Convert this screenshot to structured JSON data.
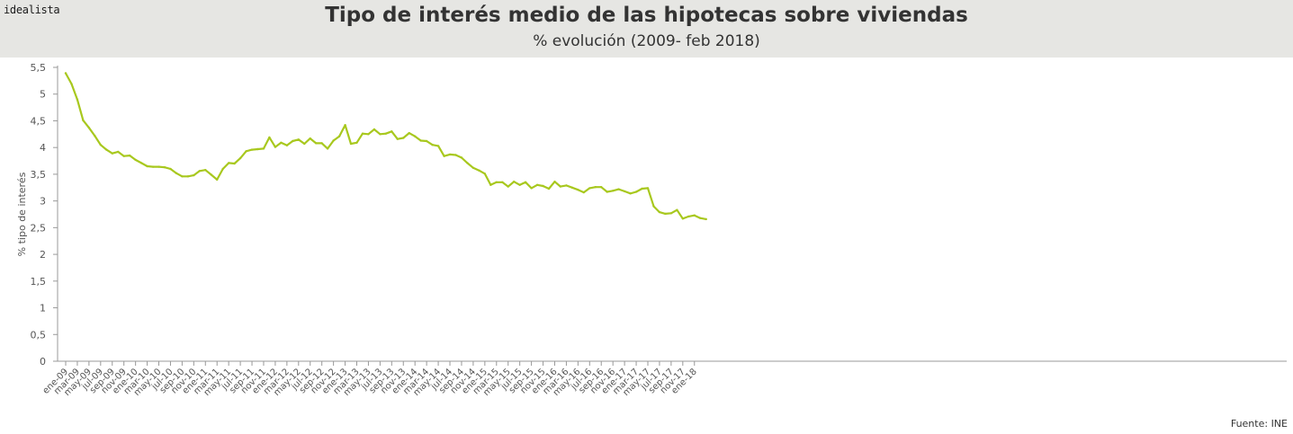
{
  "header": {
    "logo": "idealista",
    "title": "Tipo de interés medio de las hipotecas sobre viviendas",
    "subtitle": "% evolución (2009- feb 2018)"
  },
  "source": "Fuente: INE",
  "colors": {
    "line": "#a8c81e",
    "axis": "#999999",
    "text": "#555555",
    "header_bg": "#e6e6e3"
  },
  "chart_data": {
    "type": "line",
    "title": "Tipo de interés medio de las hipotecas sobre viviendas",
    "subtitle": "% evolución (2009- feb 2018)",
    "xlabel": "",
    "ylabel": "% tipo de interés",
    "ylim": [
      0,
      5.5
    ],
    "yticks": [
      "0",
      "0,5",
      "1",
      "1,5",
      "2",
      "2,5",
      "3",
      "3,5",
      "4",
      "4,5",
      "5",
      "5,5"
    ],
    "grid": false,
    "x_tick_labels": [
      "ene-09",
      "mar-09",
      "may-09",
      "jul-09",
      "sep-09",
      "nov-09",
      "ene-10",
      "mar-10",
      "may-10",
      "jul-10",
      "sep-10",
      "nov-10",
      "ene-11",
      "mar-11",
      "may-11",
      "jul-11",
      "sep-11",
      "nov-11",
      "ene-12",
      "mar-12",
      "may-12",
      "jul-12",
      "sep-12",
      "nov-12",
      "ene-13",
      "mar-13",
      "may-13",
      "jul-13",
      "sep-13",
      "nov-13",
      "ene-14",
      "mar-14",
      "may-14",
      "jul-14",
      "sep-14",
      "nov-14",
      "ene-15",
      "mar-15",
      "may-15",
      "jul-15",
      "sep-15",
      "nov-15",
      "ene-16",
      "mar-16",
      "may-16",
      "jul-16",
      "sep-16",
      "nov-16",
      "ene-17",
      "mar-17",
      "may-17",
      "jul-17",
      "sep-17",
      "nov-17",
      "ene-18"
    ],
    "series": [
      {
        "values": [
          5.39,
          5.19,
          4.9,
          4.51,
          4.37,
          4.22,
          4.05,
          3.96,
          3.89,
          3.92,
          3.84,
          3.85,
          3.77,
          3.71,
          3.65,
          3.64,
          3.64,
          3.63,
          3.6,
          3.52,
          3.46,
          3.46,
          3.48,
          3.56,
          3.58,
          3.49,
          3.4,
          3.6,
          3.71,
          3.7,
          3.8,
          3.93,
          3.96,
          3.97,
          3.98,
          4.19,
          4.01,
          4.09,
          4.04,
          4.12,
          4.15,
          4.07,
          4.17,
          4.08,
          4.08,
          3.98,
          4.13,
          4.21,
          4.42,
          4.07,
          4.09,
          4.26,
          4.25,
          4.34,
          4.25,
          4.26,
          4.3,
          4.16,
          4.18,
          4.27,
          4.21,
          4.13,
          4.12,
          4.05,
          4.03,
          3.84,
          3.87,
          3.86,
          3.81,
          3.71,
          3.62,
          3.57,
          3.51,
          3.3,
          3.35,
          3.35,
          3.27,
          3.36,
          3.3,
          3.35,
          3.24,
          3.3,
          3.28,
          3.23,
          3.36,
          3.27,
          3.29,
          3.25,
          3.21,
          3.16,
          3.24,
          3.26,
          3.26,
          3.17,
          3.19,
          3.22,
          3.18,
          3.14,
          3.17,
          3.23,
          3.24,
          2.9,
          2.79,
          2.76,
          2.77,
          2.83,
          2.67,
          2.71,
          2.73,
          2.68,
          2.66
        ]
      }
    ]
  }
}
